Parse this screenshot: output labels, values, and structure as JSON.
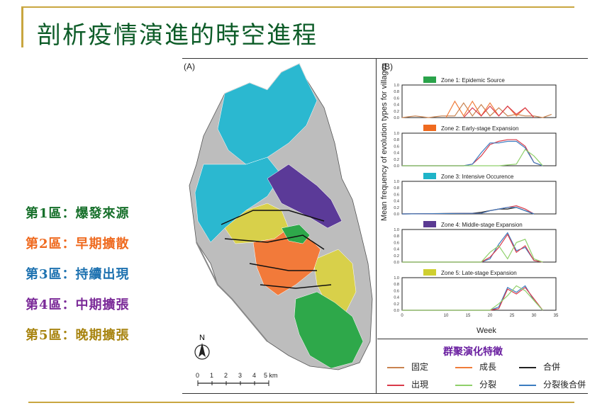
{
  "slide": {
    "title": "剖析疫情演進的時空進程",
    "colors": {
      "accent_line": "#c9a640",
      "title": "#0d5c28"
    }
  },
  "zones": [
    {
      "label": "第1區：爆發來源",
      "color": "#17702b"
    },
    {
      "label": "第2區：早期擴散",
      "color": "#ef6a1f"
    },
    {
      "label": "第3區：持續出現",
      "color": "#1e72b0"
    },
    {
      "label": "第4區：中期擴張",
      "color": "#7b2a98"
    },
    {
      "label": "第5區：晚期擴張",
      "color": "#a88410"
    }
  ],
  "panel_a": {
    "label": "(A)",
    "north": "N",
    "scale_ticks": [
      "0",
      "1",
      "2",
      "3",
      "4",
      "5 km"
    ]
  },
  "panel_b": {
    "label": "(B)",
    "ylabel": "Mean frequency of evolution types for villages",
    "xlabel": "Week"
  },
  "chart_data": {
    "type": "line",
    "x_ticks": [
      0,
      10,
      15,
      20,
      25,
      30,
      35
    ],
    "x_tick_labels": [
      "0",
      "10",
      "15",
      "20",
      "25",
      "30",
      "35"
    ],
    "y_ticks": [
      0,
      0.2,
      0.4,
      0.6,
      0.8,
      1.0
    ],
    "y_tick_labels": [
      "0.0",
      "0.2",
      "0.4",
      "0.6",
      "0.8",
      "1.0"
    ],
    "xlabel": "Week",
    "ylabel": "Mean frequency of evolution types for villages",
    "ylim": [
      0,
      1
    ],
    "xlim": [
      0,
      35
    ],
    "legend_position": "bottom",
    "panels": [
      {
        "title": "Zone 1: Epidemic Source",
        "color": "#2aa34a",
        "series": [
          {
            "type": "固定",
            "color": "#c98350",
            "x": [
              0,
              3,
              6,
              9,
              12,
              14,
              16,
              18,
              20,
              22,
              24,
              26,
              28,
              30,
              32,
              34
            ],
            "y": [
              0,
              0.05,
              0,
              0.05,
              0.05,
              0.45,
              0.05,
              0.4,
              0.05,
              0.3,
              0.05,
              0.1,
              0.05,
              0.05,
              0,
              0.1
            ]
          },
          {
            "type": "成長",
            "color": "#f07c3a",
            "x": [
              10,
              12,
              14,
              16,
              18,
              20,
              22,
              24,
              26,
              28,
              30
            ],
            "y": [
              0,
              0.5,
              0.05,
              0.5,
              0.05,
              0.45,
              0.05,
              0.35,
              0.05,
              0.3,
              0
            ]
          },
          {
            "type": "出現",
            "color": "#d93a4a",
            "x": [
              14,
              16,
              18,
              20,
              22,
              24,
              26,
              28,
              30
            ],
            "y": [
              0,
              0.3,
              0.05,
              0.35,
              0.05,
              0.35,
              0.1,
              0.3,
              0
            ]
          }
        ]
      },
      {
        "title": "Zone 2: Early-stage Expansion",
        "color": "#ef6a1f",
        "series": [
          {
            "type": "出現",
            "color": "#d93a4a",
            "x": [
              0,
              14,
              16,
              18,
              20,
              22,
              24,
              26,
              28,
              30,
              32
            ],
            "y": [
              0,
              0,
              0.05,
              0.3,
              0.65,
              0.75,
              0.8,
              0.8,
              0.6,
              0.1,
              0
            ]
          },
          {
            "type": "分裂後合併",
            "color": "#3b7cc0",
            "x": [
              0,
              14,
              16,
              18,
              20,
              22,
              24,
              26,
              28,
              30,
              32
            ],
            "y": [
              0,
              0,
              0.05,
              0.4,
              0.7,
              0.7,
              0.75,
              0.75,
              0.55,
              0.1,
              0
            ]
          },
          {
            "type": "分裂",
            "color": "#8fd06a",
            "x": [
              0,
              22,
              26,
              28,
              30,
              32
            ],
            "y": [
              0,
              0,
              0.05,
              0.5,
              0.3,
              0
            ]
          }
        ]
      },
      {
        "title": "Zone 3: Intensive Occurence",
        "color": "#1fb4c8",
        "series": [
          {
            "type": "合併",
            "color": "#222222",
            "x": [
              0,
              16,
              18,
              20,
              22,
              24,
              26,
              28,
              30
            ],
            "y": [
              0,
              0.02,
              0.05,
              0.1,
              0.15,
              0.15,
              0.2,
              0.1,
              0
            ]
          },
          {
            "type": "出現",
            "color": "#d93a4a",
            "x": [
              0,
              18,
              20,
              22,
              24,
              26,
              28,
              30
            ],
            "y": [
              0,
              0.02,
              0.1,
              0.15,
              0.2,
              0.25,
              0.15,
              0
            ]
          },
          {
            "type": "分裂後合併",
            "color": "#3b7cc0",
            "x": [
              0,
              18,
              20,
              22,
              24,
              26,
              28,
              30
            ],
            "y": [
              0,
              0.02,
              0.1,
              0.15,
              0.2,
              0.2,
              0.1,
              0
            ]
          }
        ]
      },
      {
        "title": "Zone 4: Middle-stage Expansion",
        "color": "#5a3a92",
        "series": [
          {
            "type": "分裂後合併",
            "color": "#3b7cc0",
            "x": [
              0,
              18,
              20,
              22,
              24,
              26,
              28,
              30,
              32
            ],
            "y": [
              0,
              0,
              0.1,
              0.55,
              0.9,
              0.35,
              0.45,
              0.05,
              0
            ]
          },
          {
            "type": "出現",
            "color": "#d93a4a",
            "x": [
              0,
              18,
              20,
              22,
              24,
              26,
              28,
              30,
              32
            ],
            "y": [
              0,
              0,
              0.15,
              0.45,
              0.85,
              0.3,
              0.5,
              0.05,
              0
            ]
          },
          {
            "type": "分裂",
            "color": "#8fd06a",
            "x": [
              0,
              18,
              20,
              22,
              24,
              26,
              28,
              30,
              32
            ],
            "y": [
              0,
              0,
              0.3,
              0.5,
              0.1,
              0.6,
              0.7,
              0.1,
              0
            ]
          }
        ]
      },
      {
        "title": "Zone 5: Late-stage Expansion",
        "color": "#cfcf30",
        "series": [
          {
            "type": "分裂後合併",
            "color": "#3b7cc0",
            "x": [
              0,
              20,
              22,
              24,
              26,
              28,
              30,
              32
            ],
            "y": [
              0,
              0,
              0.1,
              0.7,
              0.55,
              0.75,
              0.3,
              0
            ]
          },
          {
            "type": "出現",
            "color": "#d93a4a",
            "x": [
              0,
              20,
              22,
              24,
              26,
              28,
              30,
              32
            ],
            "y": [
              0,
              0,
              0.05,
              0.65,
              0.5,
              0.7,
              0.35,
              0
            ]
          },
          {
            "type": "分裂",
            "color": "#8fd06a",
            "x": [
              0,
              20,
              22,
              24,
              26,
              28,
              30,
              32
            ],
            "y": [
              0,
              0,
              0.2,
              0.45,
              0.75,
              0.6,
              0.3,
              0
            ]
          }
        ]
      }
    ]
  },
  "legend": {
    "title": "群聚演化特徵",
    "items": [
      {
        "label": "固定",
        "color": "#c98350"
      },
      {
        "label": "成長",
        "color": "#f07c3a"
      },
      {
        "label": "合併",
        "color": "#222222"
      },
      {
        "label": "出現",
        "color": "#d93a4a"
      },
      {
        "label": "分裂",
        "color": "#8fd06a"
      },
      {
        "label": "分裂後合併",
        "color": "#3b7cc0"
      }
    ]
  },
  "map_colors": {
    "zone1": "#2ea84a",
    "zone2": "#f27a3a",
    "zone3": "#2bb8d0",
    "zone4": "#5b3a98",
    "zone5": "#d8d04a",
    "background": "#bdbdbd"
  }
}
